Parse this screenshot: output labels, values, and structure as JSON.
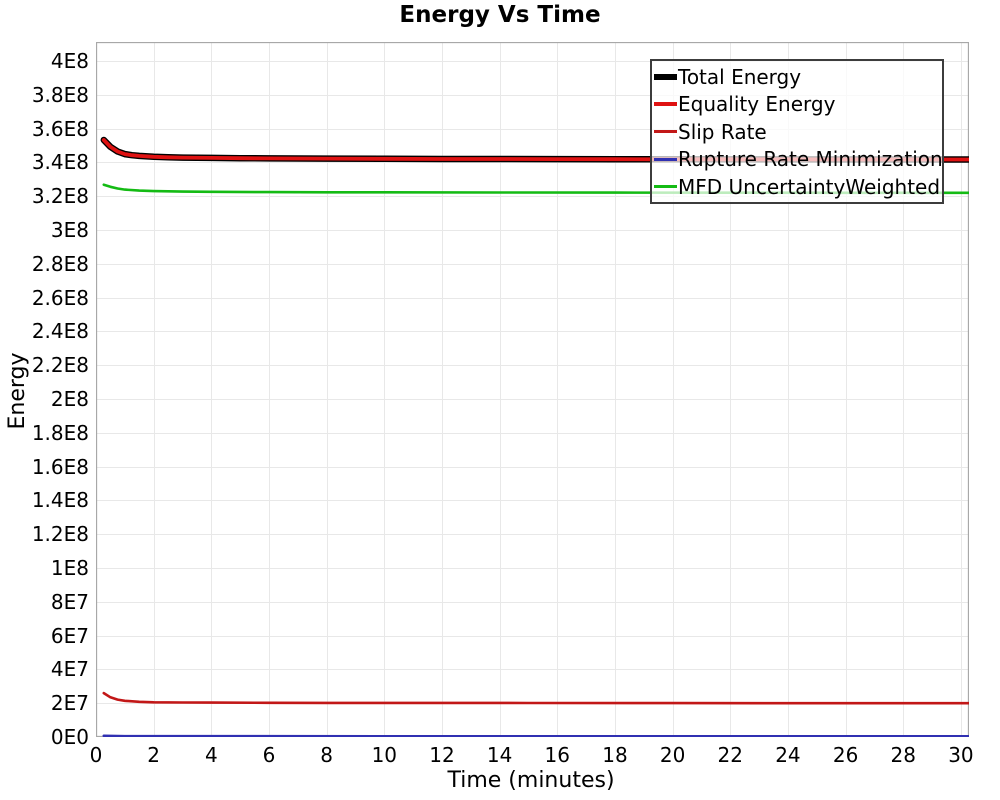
{
  "chart_data": {
    "type": "line",
    "title": "Energy Vs Time",
    "xlabel": "Time (minutes)",
    "ylabel": "Energy",
    "xlim": [
      0,
      30.28
    ],
    "ylim": [
      0,
      411200000
    ],
    "grid": true,
    "legend_position": "top-right-inside",
    "x_ticks": [
      0,
      2,
      4,
      6,
      8,
      10,
      12,
      14,
      16,
      18,
      20,
      22,
      24,
      26,
      28,
      30
    ],
    "y_ticks": [
      {
        "value": 0,
        "label": "0E0"
      },
      {
        "value": 20000000,
        "label": "2E7"
      },
      {
        "value": 40000000,
        "label": "4E7"
      },
      {
        "value": 60000000,
        "label": "6E7"
      },
      {
        "value": 80000000,
        "label": "8E7"
      },
      {
        "value": 100000000,
        "label": "1E8"
      },
      {
        "value": 120000000,
        "label": "1.2E8"
      },
      {
        "value": 140000000,
        "label": "1.4E8"
      },
      {
        "value": 160000000,
        "label": "1.6E8"
      },
      {
        "value": 180000000,
        "label": "1.8E8"
      },
      {
        "value": 200000000,
        "label": "2E8"
      },
      {
        "value": 220000000,
        "label": "2.2E8"
      },
      {
        "value": 240000000,
        "label": "2.4E8"
      },
      {
        "value": 260000000,
        "label": "2.6E8"
      },
      {
        "value": 280000000,
        "label": "2.8E8"
      },
      {
        "value": 300000000,
        "label": "3E8"
      },
      {
        "value": 320000000,
        "label": "3.2E8"
      },
      {
        "value": 340000000,
        "label": "3.4E8"
      },
      {
        "value": 360000000,
        "label": "3.6E8"
      },
      {
        "value": 380000000,
        "label": "3.8E8"
      },
      {
        "value": 400000000,
        "label": "4E8"
      }
    ],
    "series": [
      {
        "name": "Total Energy",
        "color": "#000000",
        "width": 6.5,
        "points": [
          [
            0.27,
            353200000
          ],
          [
            0.5,
            349200000
          ],
          [
            0.75,
            346400000
          ],
          [
            1,
            344900000
          ],
          [
            1.25,
            344200000
          ],
          [
            1.5,
            343800000
          ],
          [
            2,
            343300000
          ],
          [
            2.5,
            343000000
          ],
          [
            3,
            342800000
          ],
          [
            4,
            342600000
          ],
          [
            5,
            342450000
          ],
          [
            6,
            342350000
          ],
          [
            8,
            342200000
          ],
          [
            10,
            342100000
          ],
          [
            12,
            342000000
          ],
          [
            14,
            341950000
          ],
          [
            16,
            341900000
          ],
          [
            18,
            341850000
          ],
          [
            20,
            341800000
          ],
          [
            24,
            341750000
          ],
          [
            28,
            341700000
          ],
          [
            30.28,
            341700000
          ]
        ]
      },
      {
        "name": "Equality Energy",
        "color": "#df1212",
        "width": 3.8,
        "points": [
          [
            0.27,
            353200000
          ],
          [
            0.5,
            349200000
          ],
          [
            0.75,
            346400000
          ],
          [
            1,
            344900000
          ],
          [
            1.25,
            344200000
          ],
          [
            1.5,
            343800000
          ],
          [
            2,
            343300000
          ],
          [
            2.5,
            343000000
          ],
          [
            3,
            342800000
          ],
          [
            4,
            342600000
          ],
          [
            5,
            342450000
          ],
          [
            6,
            342350000
          ],
          [
            8,
            342200000
          ],
          [
            10,
            342100000
          ],
          [
            12,
            342000000
          ],
          [
            14,
            341950000
          ],
          [
            16,
            341900000
          ],
          [
            18,
            341850000
          ],
          [
            20,
            341800000
          ],
          [
            24,
            341750000
          ],
          [
            28,
            341700000
          ],
          [
            30.28,
            341700000
          ]
        ]
      },
      {
        "name": "Slip Rate",
        "color": "#c21717",
        "width": 2.6,
        "points": [
          [
            0.27,
            26000000
          ],
          [
            0.5,
            23500000
          ],
          [
            0.75,
            22100000
          ],
          [
            1,
            21400000
          ],
          [
            1.5,
            20800000
          ],
          [
            2,
            20550000
          ],
          [
            3,
            20400000
          ],
          [
            4,
            20350000
          ],
          [
            6,
            20250000
          ],
          [
            8,
            20200000
          ],
          [
            10,
            20150000
          ],
          [
            15,
            20100000
          ],
          [
            20,
            20050000
          ],
          [
            25,
            20000000
          ],
          [
            30.28,
            20000000
          ]
        ]
      },
      {
        "name": "Rupture Rate Minimization",
        "color": "#3030b2",
        "width": 2.6,
        "points": [
          [
            0.27,
            700000
          ],
          [
            1,
            500000
          ],
          [
            5,
            450000
          ],
          [
            15,
            400000
          ],
          [
            30.28,
            400000
          ]
        ]
      },
      {
        "name": "MFD UncertaintyWeighted",
        "color": "#14bb14",
        "width": 2.6,
        "points": [
          [
            0.27,
            326800000
          ],
          [
            0.5,
            325500000
          ],
          [
            0.75,
            324500000
          ],
          [
            1,
            323900000
          ],
          [
            1.5,
            323300000
          ],
          [
            2,
            323000000
          ],
          [
            3,
            322700000
          ],
          [
            4,
            322550000
          ],
          [
            6,
            322400000
          ],
          [
            8,
            322300000
          ],
          [
            10,
            322250000
          ],
          [
            14,
            322150000
          ],
          [
            18,
            322100000
          ],
          [
            22,
            322050000
          ],
          [
            26,
            322000000
          ],
          [
            30.28,
            321950000
          ]
        ]
      }
    ],
    "colors": {
      "gridline": "#e8e8e8",
      "plot_border": "#a8a8a8",
      "legend_border": "#3c3c3c",
      "legend_background": "rgba(255,255,255,0.72)",
      "text": "#000000"
    }
  }
}
